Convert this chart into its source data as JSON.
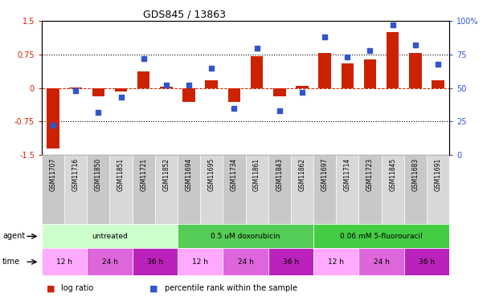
{
  "title": "GDS845 / 13863",
  "samples": [
    "GSM11707",
    "GSM11716",
    "GSM11850",
    "GSM11851",
    "GSM11721",
    "GSM11852",
    "GSM11694",
    "GSM11695",
    "GSM11734",
    "GSM11861",
    "GSM11843",
    "GSM11862",
    "GSM11697",
    "GSM11714",
    "GSM11723",
    "GSM11845",
    "GSM11683",
    "GSM11691"
  ],
  "log_ratio": [
    -1.35,
    0.02,
    -0.18,
    -0.08,
    0.38,
    0.03,
    -0.32,
    0.18,
    -0.32,
    0.72,
    -0.18,
    0.05,
    0.78,
    0.55,
    0.65,
    1.25,
    0.78,
    0.18
  ],
  "percentile": [
    22,
    48,
    32,
    43,
    72,
    52,
    52,
    65,
    35,
    80,
    33,
    47,
    88,
    73,
    78,
    97,
    82,
    68
  ],
  "ylim_left": [
    -1.5,
    1.5
  ],
  "ylim_right": [
    0,
    100
  ],
  "yticks_left": [
    -1.5,
    -0.75,
    0,
    0.75,
    1.5
  ],
  "yticks_right": [
    0,
    25,
    50,
    75,
    100
  ],
  "bar_color": "#cc2200",
  "dot_color": "#3355cc",
  "agent_groups": [
    {
      "label": "untreated",
      "start": 0,
      "end": 6,
      "color": "#ccffcc"
    },
    {
      "label": "0.5 uM doxorubicin",
      "start": 6,
      "end": 12,
      "color": "#44cc44"
    },
    {
      "label": "0.06 mM 5-fluorouracil",
      "start": 12,
      "end": 18,
      "color": "#44cc44"
    }
  ],
  "time_labels": [
    "12 h",
    "24 h",
    "36 h",
    "12 h",
    "24 h",
    "36 h",
    "12 h",
    "24 h",
    "36 h"
  ],
  "time_starts": [
    0,
    2,
    4,
    6,
    8,
    10,
    12,
    14,
    16
  ],
  "time_ends": [
    2,
    4,
    6,
    8,
    10,
    12,
    14,
    16,
    18
  ],
  "time_colors": [
    "#ffaaff",
    "#ee66ee",
    "#cc22cc",
    "#ffaaff",
    "#ee66ee",
    "#cc22cc",
    "#ffaaff",
    "#ee66ee",
    "#cc22cc"
  ],
  "legend_bar_color": "#cc2200",
  "legend_dot_color": "#3355cc"
}
